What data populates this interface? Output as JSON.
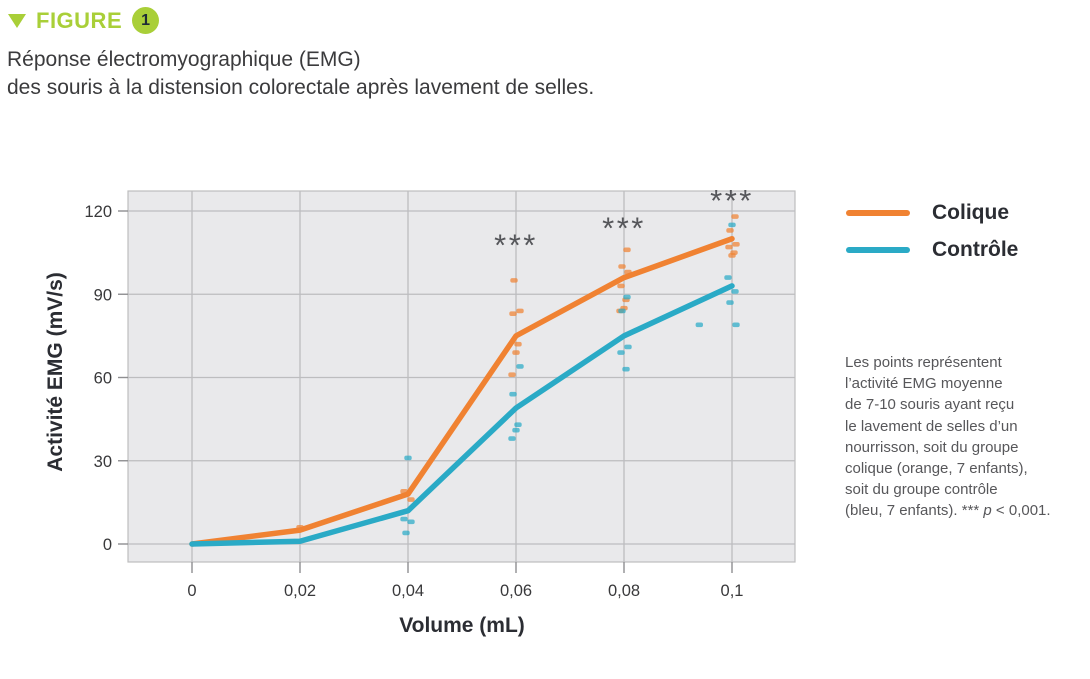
{
  "header": {
    "label": "FIGURE",
    "number": "1",
    "accent_color": "#a9cf38"
  },
  "subtitle": {
    "line1": "Réponse électromyographique (EMG)",
    "line2": "des souris à la distension colorectale après lavement de selles."
  },
  "legend": {
    "items": [
      {
        "label": "Colique",
        "color": "#f08232"
      },
      {
        "label": "Contrôle",
        "color": "#2aaac6"
      }
    ]
  },
  "caption": {
    "line1": "Les points représentent",
    "line2": "l’activité EMG moyenne",
    "line3": "de 7-10 souris ayant reçu",
    "line4": "le lavement de selles d’un",
    "line5": "nourrisson, soit du groupe",
    "line6": "colique (orange, 7 enfants),",
    "line7": "soit du groupe contrôle",
    "line8_prefix": "(bleu, 7 enfants). *** ",
    "line8_p": "p",
    "line8_suffix": " < 0,001."
  },
  "chart_data": {
    "type": "line",
    "title": "",
    "xlabel": "Volume (mL)",
    "ylabel": "Activité EMG (mV/s)",
    "x_ticks": [
      0,
      0.02,
      0.04,
      0.06,
      0.08,
      0.1
    ],
    "x_tick_labels": [
      "0",
      "0,02",
      "0,04",
      "0,06",
      "0,08",
      "0,1"
    ],
    "y_ticks": [
      0,
      30,
      60,
      90,
      120
    ],
    "y_tick_labels": [
      "0",
      "30",
      "60",
      "90",
      "120"
    ],
    "xlim": [
      -0.012,
      0.112
    ],
    "ylim": [
      -9,
      127
    ],
    "grid": true,
    "legend_position": "upper-right-outside",
    "panel_bg": "#e9e9eb",
    "grid_color": "#bdbdbf",
    "annotation_color": "#55565a",
    "series": [
      {
        "name": "Colique",
        "color": "#f08232",
        "x": [
          0,
          0.02,
          0.04,
          0.06,
          0.08,
          0.1
        ],
        "values": [
          0,
          5,
          18,
          75,
          96,
          110
        ],
        "scatter": [
          {
            "x": 0.02,
            "y": 6
          },
          {
            "x": 0.04,
            "y": 19
          },
          {
            "x": 0.04,
            "y": 16
          },
          {
            "x": 0.06,
            "y": 95
          },
          {
            "x": 0.06,
            "y": 84
          },
          {
            "x": 0.06,
            "y": 83
          },
          {
            "x": 0.06,
            "y": 72
          },
          {
            "x": 0.06,
            "y": 69
          },
          {
            "x": 0.06,
            "y": 61
          },
          {
            "x": 0.08,
            "y": 106
          },
          {
            "x": 0.08,
            "y": 100
          },
          {
            "x": 0.08,
            "y": 98
          },
          {
            "x": 0.08,
            "y": 93
          },
          {
            "x": 0.08,
            "y": 88
          },
          {
            "x": 0.08,
            "y": 85
          },
          {
            "x": 0.08,
            "y": 84
          },
          {
            "x": 0.1,
            "y": 118
          },
          {
            "x": 0.1,
            "y": 113
          },
          {
            "x": 0.1,
            "y": 108
          },
          {
            "x": 0.1,
            "y": 107
          },
          {
            "x": 0.1,
            "y": 105
          },
          {
            "x": 0.1,
            "y": 104
          }
        ]
      },
      {
        "name": "Contrôle",
        "color": "#2aaac6",
        "x": [
          0,
          0.02,
          0.04,
          0.06,
          0.08,
          0.1
        ],
        "values": [
          0,
          1,
          12,
          49,
          75,
          93
        ],
        "scatter": [
          {
            "x": 0.04,
            "y": 31
          },
          {
            "x": 0.04,
            "y": 9
          },
          {
            "x": 0.04,
            "y": 8
          },
          {
            "x": 0.04,
            "y": 4
          },
          {
            "x": 0.06,
            "y": 64
          },
          {
            "x": 0.06,
            "y": 54
          },
          {
            "x": 0.06,
            "y": 43
          },
          {
            "x": 0.06,
            "y": 41
          },
          {
            "x": 0.06,
            "y": 38
          },
          {
            "x": 0.08,
            "y": 89
          },
          {
            "x": 0.08,
            "y": 84
          },
          {
            "x": 0.08,
            "y": 71
          },
          {
            "x": 0.08,
            "y": 69
          },
          {
            "x": 0.08,
            "y": 63
          },
          {
            "x": 0.1,
            "y": 115
          },
          {
            "x": 0.1,
            "y": 96
          },
          {
            "x": 0.1,
            "y": 91
          },
          {
            "x": 0.1,
            "y": 87
          },
          {
            "x": 0.1,
            "y": 79
          },
          {
            "x": 0.0945,
            "y": 79
          }
        ]
      }
    ],
    "annotations": [
      {
        "x": 0.06,
        "y": 108,
        "text": "***"
      },
      {
        "x": 0.08,
        "y": 114,
        "text": "***"
      },
      {
        "x": 0.1,
        "y": 124,
        "text": "***"
      }
    ]
  }
}
